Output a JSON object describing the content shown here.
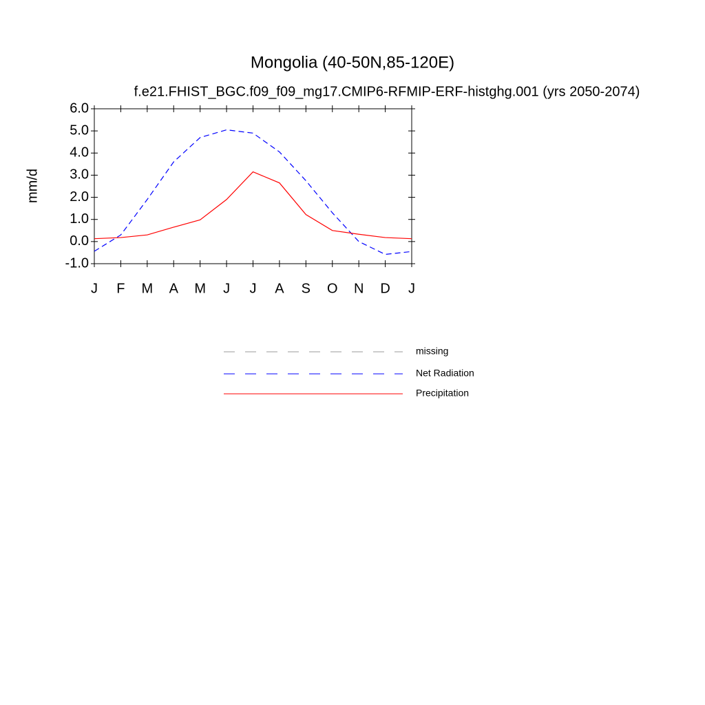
{
  "chart_data": {
    "type": "line",
    "title": "Mongolia (40-50N,85-120E)",
    "subtitle": "f.e21.FHIST_BGC.f09_f09_mg17.CMIP6-RFMIP-ERF-histghg.001 (yrs 2050-2074)",
    "y_label": "mm/d",
    "categories": [
      "J",
      "F",
      "M",
      "A",
      "M",
      "J",
      "J",
      "A",
      "S",
      "O",
      "N",
      "D",
      "J"
    ],
    "series": [
      {
        "name": "missing",
        "color": "#999999",
        "dashed": true,
        "values": [
          null,
          null,
          null,
          null,
          null,
          null,
          null,
          null,
          null,
          null,
          null,
          null,
          null
        ]
      },
      {
        "name": "Net Radiation",
        "color": "#0000ff",
        "dashed": true,
        "values": [
          -0.44,
          0.3,
          1.9,
          3.6,
          4.7,
          5.05,
          4.9,
          4.05,
          2.75,
          1.3,
          0.0,
          -0.58,
          -0.45
        ]
      },
      {
        "name": "Precipitation",
        "color": "#ff0000",
        "dashed": false,
        "values": [
          0.13,
          0.18,
          0.3,
          0.65,
          0.98,
          1.9,
          3.15,
          2.65,
          1.22,
          0.5,
          0.33,
          0.18,
          0.13
        ]
      }
    ],
    "ylim": [
      -1,
      6
    ],
    "yticks": [
      {
        "value": -1,
        "label": "-1.0"
      },
      {
        "value": 0,
        "label": "0.0"
      },
      {
        "value": 1,
        "label": "1.0"
      },
      {
        "value": 2,
        "label": "2.0"
      },
      {
        "value": 3,
        "label": "3.0"
      },
      {
        "value": 4,
        "label": "4.0"
      },
      {
        "value": 5,
        "label": "5.0"
      },
      {
        "value": 6,
        "label": "6.0"
      }
    ],
    "grid": false
  }
}
